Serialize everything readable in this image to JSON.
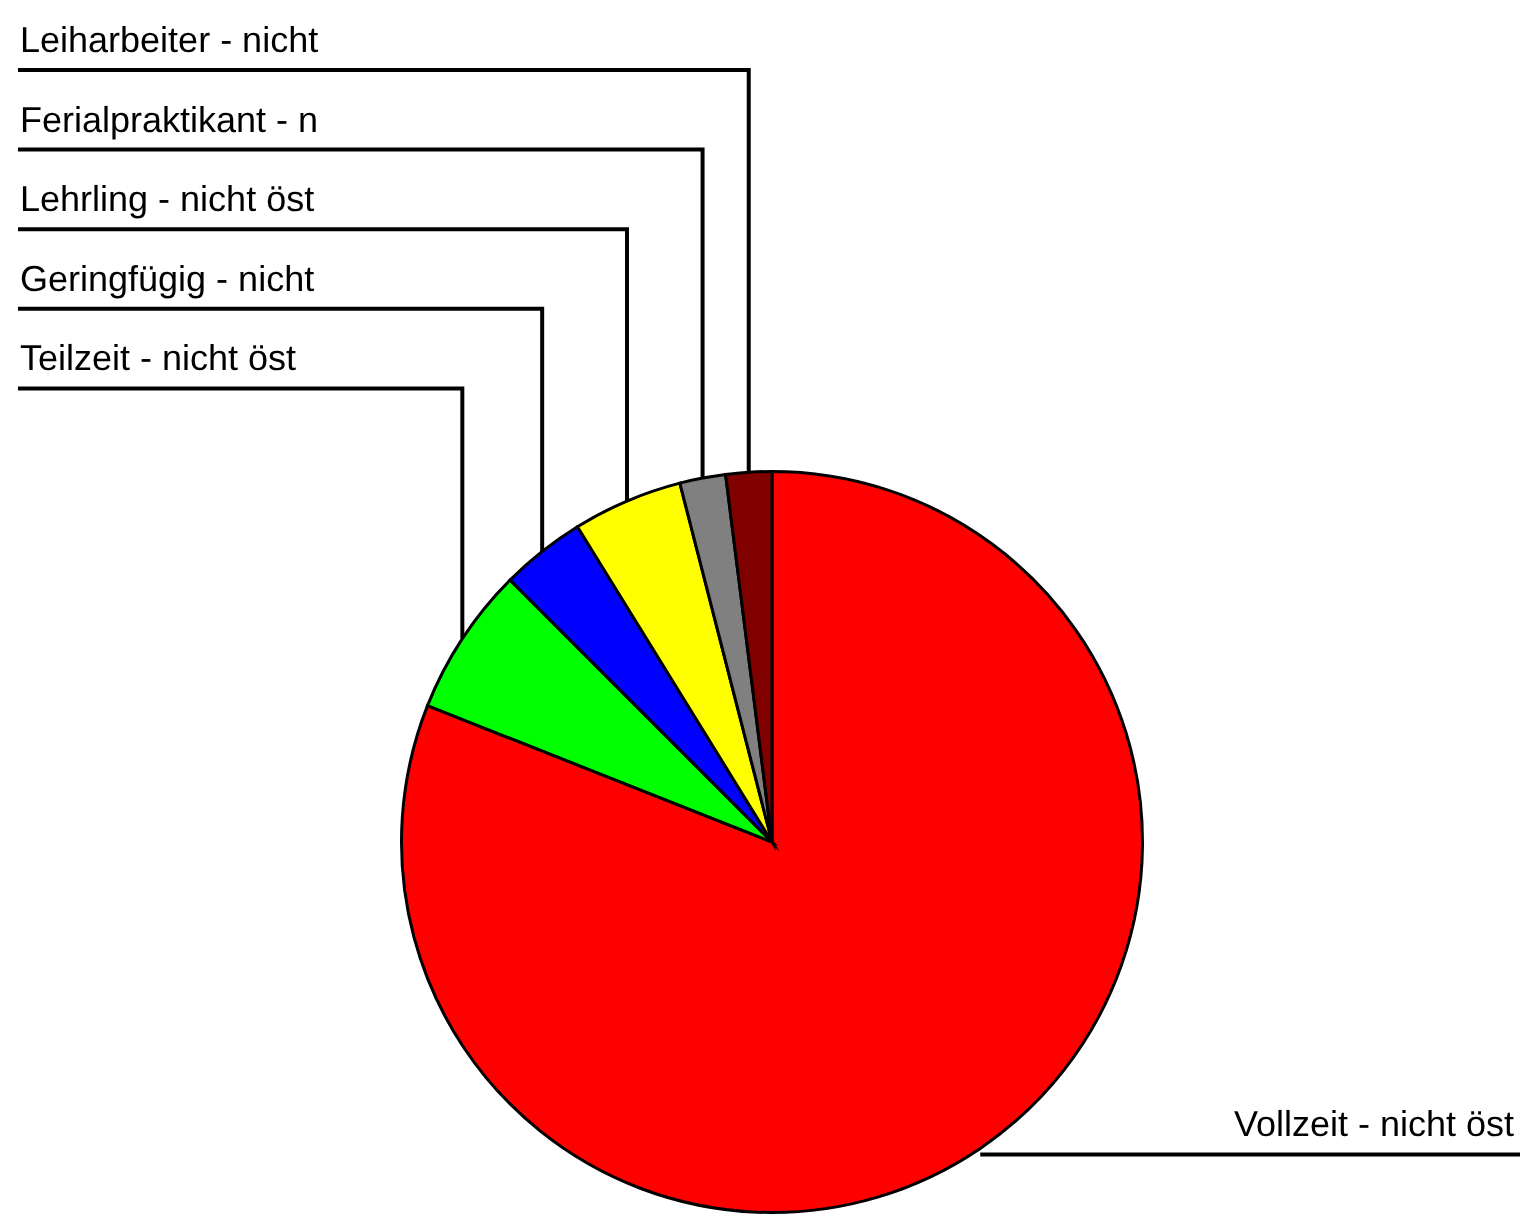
{
  "chart_data": {
    "type": "pie",
    "categories": [
      "Vollzeit - nicht öst",
      "Teilzeit - nicht öst",
      "Geringfügig - nicht",
      "Lehrling - nicht öst",
      "Ferialpraktikant - n",
      "Leiharbeiter - nicht"
    ],
    "values": [
      81.0,
      6.5,
      3.7,
      4.8,
      2.0,
      2.0
    ],
    "colors": [
      "#ff0000",
      "#00ff00",
      "#0000ff",
      "#ffff00",
      "#808080",
      "#800000"
    ]
  }
}
